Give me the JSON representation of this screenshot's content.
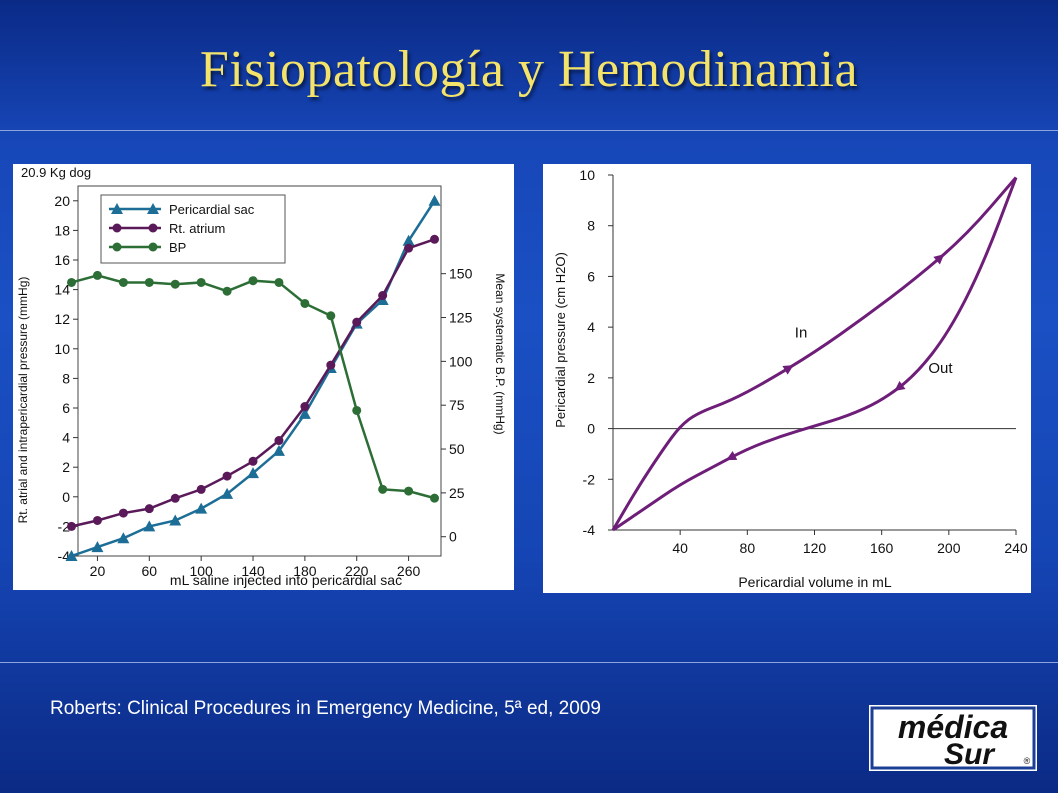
{
  "slide": {
    "title": "Fisiopatología y Hemodinamia",
    "citation": "Roberts: Clinical Procedures in Emergency Medicine, 5ª ed, 2009",
    "logo": {
      "line1": "médica",
      "line2": "Sur",
      "mark": "®",
      "color": "#1b3f95"
    },
    "colors": {
      "title": "#f3e36a",
      "background": "#1a4cc0"
    }
  },
  "chart_data": [
    {
      "type": "line",
      "title": "20.9 Kg dog",
      "xlabel": "mL saline injected into pericardial sac",
      "ylabel": "Rt. atrial and intrapericardial pressure (mmHg)",
      "ylabel_right": "Mean systematic B.P. (mmHg)",
      "xlim": [
        5,
        285
      ],
      "ylim": [
        -4,
        21
      ],
      "ylim_right": [
        -11,
        200
      ],
      "x_ticks": [
        20,
        60,
        100,
        140,
        180,
        220,
        260
      ],
      "y_ticks": [
        -4,
        -2,
        0,
        2,
        4,
        6,
        8,
        10,
        12,
        14,
        16,
        18,
        20
      ],
      "y_ticks_right": [
        0,
        25,
        50,
        75,
        100,
        125,
        150
      ],
      "grid": false,
      "legend": "top-left",
      "series": [
        {
          "name": "Pericardial sac",
          "marker": "triangle",
          "color": "#1c6e96",
          "axis": "left",
          "x": [
            0,
            20,
            40,
            60,
            80,
            100,
            120,
            140,
            160,
            180,
            200,
            220,
            240,
            260,
            280
          ],
          "y": [
            -4,
            -3.4,
            -2.8,
            -2.0,
            -1.6,
            -0.8,
            0.2,
            1.6,
            3.1,
            5.6,
            8.7,
            11.7,
            13.3,
            17.3,
            20.0
          ]
        },
        {
          "name": "Rt. atrium",
          "marker": "circle",
          "color": "#5a1a5a",
          "axis": "left",
          "x": [
            0,
            20,
            40,
            60,
            80,
            100,
            120,
            140,
            160,
            180,
            200,
            220,
            240,
            260,
            280
          ],
          "y": [
            -2.0,
            -1.6,
            -1.1,
            -0.8,
            -0.1,
            0.5,
            1.4,
            2.4,
            3.8,
            6.1,
            8.9,
            11.8,
            13.6,
            16.8,
            17.4
          ]
        },
        {
          "name": "BP",
          "marker": "circle",
          "color": "#2c6e36",
          "axis": "right",
          "x": [
            0,
            20,
            40,
            60,
            80,
            100,
            120,
            140,
            160,
            180,
            200,
            220,
            240,
            260,
            280
          ],
          "y": [
            145,
            149,
            145,
            145,
            144,
            145,
            140,
            146,
            145,
            133,
            126,
            72,
            27,
            26,
            22
          ]
        }
      ]
    },
    {
      "type": "line",
      "title": "",
      "xlabel": "Pericardial volume in mL",
      "ylabel": "Pericardial pressure (cm H2O)",
      "xlim": [
        0,
        240
      ],
      "ylim": [
        -4,
        10
      ],
      "x_ticks": [
        40,
        80,
        120,
        160,
        200,
        240
      ],
      "y_ticks": [
        -4,
        -2,
        0,
        2,
        4,
        6,
        8,
        10
      ],
      "grid": false,
      "zero_line": true,
      "annotations": [
        "In",
        "Out"
      ],
      "series": [
        {
          "name": "In",
          "color": "#6e1e78",
          "x": [
            0,
            15,
            30,
            40,
            50,
            70,
            90,
            120,
            150,
            180,
            210,
            240
          ],
          "y": [
            -4,
            -2.3,
            -0.8,
            0.1,
            0.6,
            1.1,
            1.8,
            3.0,
            4.4,
            5.9,
            7.6,
            9.9
          ]
        },
        {
          "name": "Out",
          "color": "#6e1e78",
          "x": [
            240,
            220,
            200,
            180,
            160,
            140,
            120,
            100,
            80,
            60,
            40,
            20,
            0
          ],
          "y": [
            9.9,
            6.4,
            3.8,
            2.1,
            1.1,
            0.5,
            0.1,
            -0.3,
            -0.8,
            -1.5,
            -2.2,
            -3.1,
            -4
          ]
        }
      ]
    }
  ]
}
